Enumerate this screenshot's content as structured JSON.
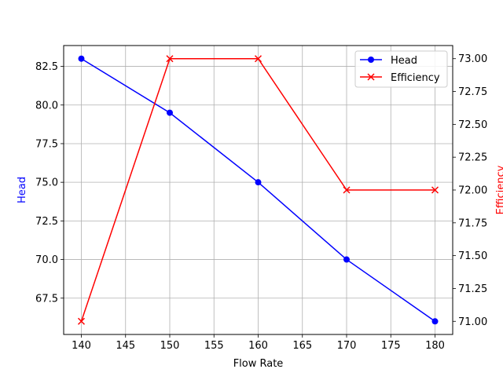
{
  "chart_data": {
    "type": "line",
    "x": [
      140,
      150,
      160,
      170,
      180
    ],
    "xlabel": "Flow Rate",
    "xlim": [
      138,
      182
    ],
    "xticks": [
      140,
      145,
      150,
      155,
      160,
      165,
      170,
      175,
      180
    ],
    "grid": true,
    "legend_position": "top-right",
    "series": [
      {
        "name": "Head",
        "axis": "left",
        "values": [
          83,
          79.5,
          75,
          70,
          66
        ],
        "color": "#0000ff",
        "marker": "circle"
      },
      {
        "name": "Efficiency",
        "axis": "right",
        "values": [
          71,
          73,
          73,
          72,
          72
        ],
        "color": "#ff0000",
        "marker": "x"
      }
    ],
    "left_axis": {
      "label": "Head",
      "color": "#0000ff",
      "ylim": [
        65.15,
        83.85
      ],
      "ticks": [
        "67.5",
        "70.0",
        "72.5",
        "75.0",
        "77.5",
        "80.0",
        "82.5"
      ]
    },
    "right_axis": {
      "label": "Efficiency",
      "color": "#ff0000",
      "ylim": [
        70.9,
        73.1
      ],
      "ticks": [
        "71.00",
        "71.25",
        "71.50",
        "71.75",
        "72.00",
        "72.25",
        "72.50",
        "72.75",
        "73.00"
      ]
    }
  }
}
